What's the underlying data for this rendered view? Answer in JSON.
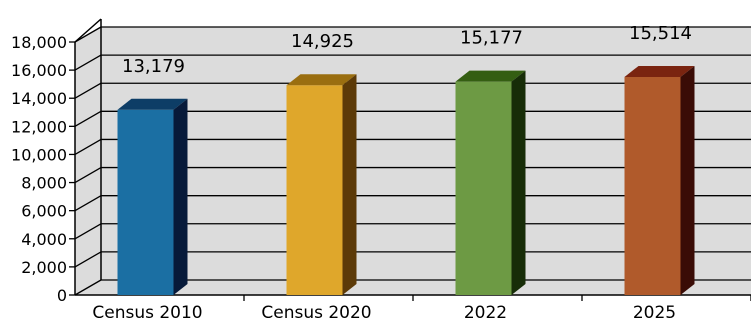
{
  "chart_data": {
    "type": "bar",
    "title": "",
    "xlabel": "",
    "ylabel": "",
    "categories": [
      "Census 2010",
      "Census 2020",
      "2022",
      "2025"
    ],
    "values": [
      13179,
      14925,
      15177,
      15514
    ],
    "value_labels": [
      "13,179",
      "14,925",
      "15,177",
      "15,514"
    ],
    "ylim": [
      0,
      18000
    ],
    "yticks": [
      0,
      2000,
      4000,
      6000,
      8000,
      10000,
      12000,
      14000,
      16000,
      18000
    ],
    "ytick_labels": [
      "0",
      "2,000",
      "4,000",
      "6,000",
      "8,000",
      "10,000",
      "12,000",
      "14,000",
      "16,000",
      "18,000"
    ],
    "grid": true,
    "style": "3d-bars",
    "colors": {
      "plot_background": "#dcdcdc",
      "gridline": "#000000",
      "bars": [
        {
          "front": "#1b6fa3",
          "top": "#0d3d66",
          "side": "#071a3a"
        },
        {
          "front": "#dfa72b",
          "top": "#9a6e10",
          "side": "#5c3a08"
        },
        {
          "front": "#6d9a44",
          "top": "#345e12",
          "side": "#172d08"
        },
        {
          "front": "#b05a2b",
          "top": "#7a2410",
          "side": "#3a0c06"
        }
      ]
    }
  }
}
